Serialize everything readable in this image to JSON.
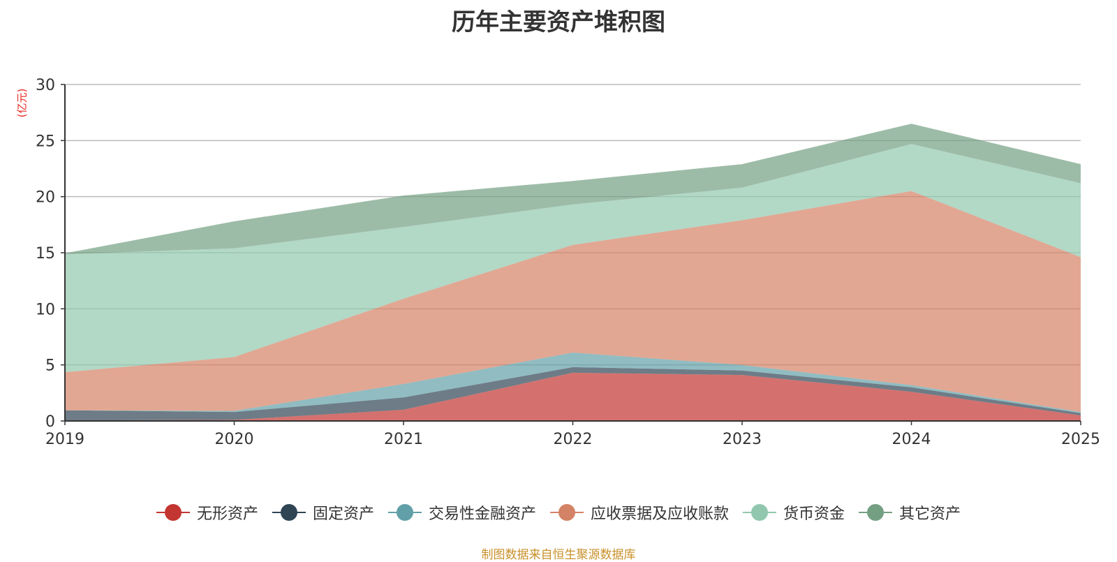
{
  "chart_data": {
    "type": "area",
    "stacked": true,
    "title": "历年主要资产堆积图",
    "ylabel": "(亿元)",
    "xlabel": "",
    "categories": [
      "2019",
      "2020",
      "2021",
      "2022",
      "2023",
      "2024",
      "2025"
    ],
    "ylim": [
      0,
      30
    ],
    "yticks": [
      0,
      5,
      10,
      15,
      20,
      25,
      30
    ],
    "grid": true,
    "legend_position": "bottom",
    "series": [
      {
        "name": "无形资产",
        "color": "#c23531",
        "values": [
          0.05,
          0.1,
          1.0,
          4.3,
          4.1,
          2.6,
          0.5
        ]
      },
      {
        "name": "固定资产",
        "color": "#2f4554",
        "values": [
          0.9,
          0.7,
          1.1,
          0.5,
          0.4,
          0.4,
          0.2
        ]
      },
      {
        "name": "交易性金融资产",
        "color": "#61a0a8",
        "values": [
          0.0,
          0.1,
          1.2,
          1.3,
          0.5,
          0.2,
          0.1
        ]
      },
      {
        "name": "应收票据及应收账款",
        "color": "#d48265",
        "values": [
          3.4,
          4.8,
          7.6,
          9.6,
          12.9,
          17.3,
          13.8
        ]
      },
      {
        "name": "货币资金",
        "color": "#91c7ae",
        "values": [
          10.5,
          9.7,
          6.4,
          3.6,
          2.9,
          4.2,
          6.6
        ]
      },
      {
        "name": "其它资产",
        "color": "#749f83",
        "values": [
          0.1,
          2.4,
          2.8,
          2.1,
          2.1,
          1.8,
          1.7
        ]
      }
    ]
  },
  "source": "制图数据来自恒生聚源数据库"
}
